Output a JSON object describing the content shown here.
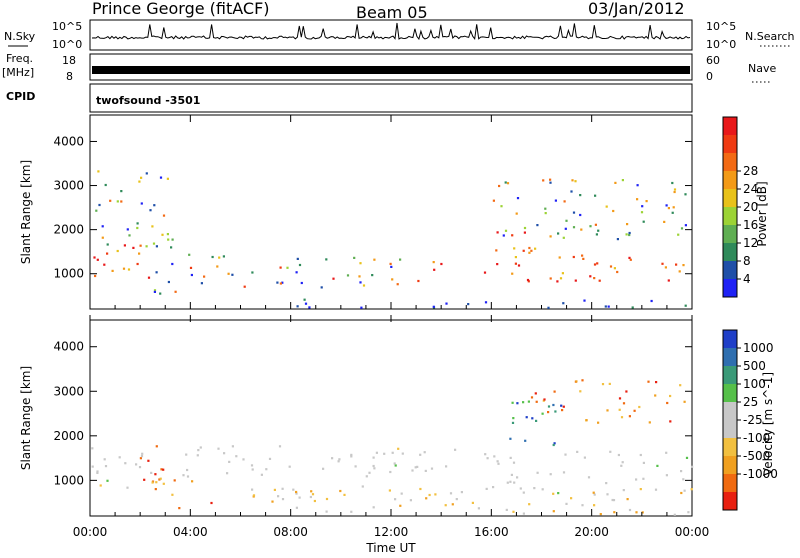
{
  "header": {
    "station": "Prince George (fitACF)",
    "beam": "Beam 05",
    "date": "03/Jan/2012"
  },
  "top_panels": {
    "nsky": {
      "label": "N.Sky",
      "ticks": [
        "10^5",
        "10^0"
      ]
    },
    "nsearch": {
      "label": "N.Search",
      "ticks": [
        "10^5",
        "10^0"
      ]
    },
    "freq": {
      "label_line1": "Freq.",
      "label_line2": "[MHz]",
      "ticks": [
        "18",
        "8"
      ]
    },
    "nave": {
      "label": "Nave",
      "ticks": [
        "60",
        "0"
      ]
    },
    "cpid": {
      "label": "CPID",
      "value": "twofsound -3501"
    }
  },
  "x_axis": {
    "label": "Time UT",
    "ticks": [
      "00:00",
      "04:00",
      "08:00",
      "12:00",
      "16:00",
      "20:00",
      "00:00"
    ]
  },
  "chart_data": [
    {
      "type": "heatmap",
      "name": "power",
      "ylabel": "Slant Range [km]",
      "y_ticks": [
        "1000",
        "2000",
        "3000",
        "4000"
      ],
      "ylim": [
        200,
        4600
      ],
      "xlim_hours": [
        0,
        24
      ],
      "colorbar": {
        "label": "Power [dB]",
        "ticks": [
          "4",
          "8",
          "12",
          "16",
          "20",
          "24",
          "28"
        ],
        "colors": [
          "#1f22f5",
          "#1f4fa8",
          "#2f8a5a",
          "#5fae52",
          "#9cd335",
          "#e8c21a",
          "#f39a17",
          "#f36a14",
          "#ef3a12",
          "#e8181a"
        ]
      },
      "regions": [
        {
          "t0": 0.0,
          "t1": 2.5,
          "r0": 700,
          "r1": 1700,
          "level": "high"
        },
        {
          "t0": 0.2,
          "t1": 3.6,
          "r0": 1600,
          "r1": 3400,
          "level": "mixed"
        },
        {
          "t0": 2.5,
          "t1": 6.0,
          "r0": 550,
          "r1": 1500,
          "level": "mid"
        },
        {
          "t0": 6.0,
          "t1": 14.0,
          "r0": 700,
          "r1": 1400,
          "level": "mid"
        },
        {
          "t0": 15.6,
          "t1": 18.5,
          "r0": 800,
          "r1": 2000,
          "level": "high"
        },
        {
          "t0": 17.0,
          "t1": 24.0,
          "r0": 850,
          "r1": 1500,
          "level": "high"
        },
        {
          "t0": 16.0,
          "t1": 24.0,
          "r0": 1800,
          "r1": 3200,
          "level": "mixed"
        },
        {
          "t0": 8.0,
          "t1": 24.0,
          "r0": 250,
          "r1": 450,
          "level": "low"
        }
      ]
    },
    {
      "type": "heatmap",
      "name": "velocity",
      "ylabel": "Slant Range [km]",
      "y_ticks": [
        "1000",
        "2000",
        "3000",
        "4000"
      ],
      "ylim": [
        200,
        4600
      ],
      "xlim_hours": [
        0,
        24
      ],
      "colorbar": {
        "label": "Velocity [m s^-1]",
        "ticks": [
          "1000",
          "500",
          "100",
          "25",
          "-25",
          "-100",
          "-500",
          "-1000"
        ],
        "colors": [
          "#1f3fc8",
          "#2f6fb0",
          "#3a9a78",
          "#56c04a",
          "#c8c8c8",
          "#c8c8c8",
          "#f2c040",
          "#f0a020",
          "#f06a10",
          "#e82010"
        ]
      },
      "regions": [
        {
          "t0": 0.0,
          "t1": 2.0,
          "r0": 800,
          "r1": 1500,
          "level": "grey"
        },
        {
          "t0": 1.8,
          "t1": 3.5,
          "r0": 900,
          "r1": 1800,
          "level": "red"
        },
        {
          "t0": 2.3,
          "t1": 4.8,
          "r0": 400,
          "r1": 1100,
          "level": "orange"
        },
        {
          "t0": 0.0,
          "t1": 14.8,
          "r0": 1100,
          "r1": 1800,
          "level": "grey"
        },
        {
          "t0": 15.7,
          "t1": 24.0,
          "r0": 700,
          "r1": 1700,
          "level": "grey"
        },
        {
          "t0": 17.5,
          "t1": 24.0,
          "r0": 2300,
          "r1": 3300,
          "level": "orange"
        },
        {
          "t0": 16.0,
          "t1": 19.0,
          "r0": 1800,
          "r1": 2900,
          "level": "blue"
        },
        {
          "t0": 6.0,
          "t1": 24.0,
          "r0": 250,
          "r1": 900,
          "level": "yellow"
        }
      ]
    }
  ]
}
